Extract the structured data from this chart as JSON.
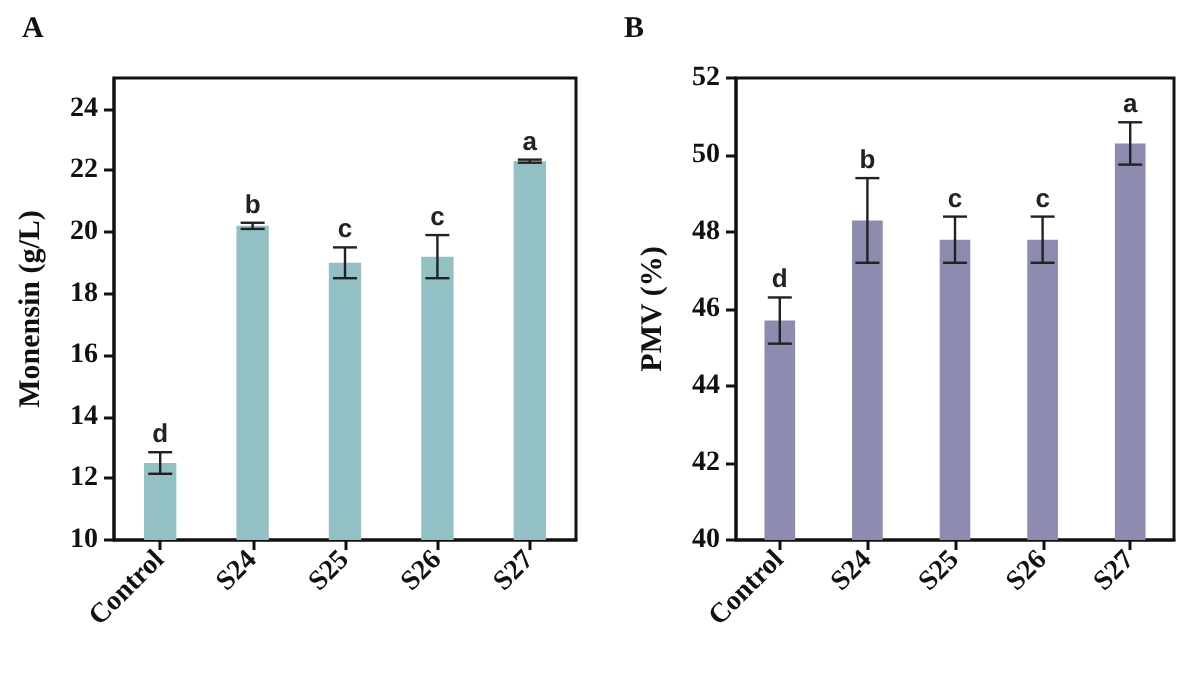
{
  "chart_data": [
    {
      "type": "bar",
      "title": "A",
      "ylabel": "Monensin (g/L)",
      "categories": [
        "Control",
        "S24",
        "S25",
        "S26",
        "S27"
      ],
      "values": [
        12.5,
        20.2,
        19.0,
        19.2,
        22.3
      ],
      "errors": [
        0.35,
        0.1,
        0.5,
        0.7,
        0.05
      ],
      "color": "#93c0c4",
      "ylim": [
        10,
        25
      ],
      "yticks": [
        10,
        12,
        14,
        16,
        18,
        20,
        22,
        24
      ],
      "grid": false,
      "annotations": [
        {
          "text": "d",
          "x": "Control",
          "y": 12.85
        },
        {
          "text": "b",
          "x": "S24",
          "y": 20.3
        },
        {
          "text": "c",
          "x": "S25",
          "y": 19.5
        },
        {
          "text": "c",
          "x": "S26",
          "y": 19.9
        },
        {
          "text": "a",
          "x": "S27",
          "y": 22.35
        }
      ]
    },
    {
      "type": "bar",
      "title": "B",
      "ylabel": "PMV (%)",
      "categories": [
        "Control",
        "S24",
        "S25",
        "S26",
        "S27"
      ],
      "values": [
        45.7,
        48.3,
        47.8,
        47.8,
        50.3
      ],
      "errors": [
        0.6,
        1.1,
        0.6,
        0.6,
        0.55
      ],
      "color": "#8e8bb0",
      "ylim": [
        40,
        52
      ],
      "yticks": [
        40,
        42,
        44,
        46,
        48,
        50,
        52
      ],
      "grid": false,
      "annotations": [
        {
          "text": "d",
          "x": "Control",
          "y": 46.3
        },
        {
          "text": "b",
          "x": "S24",
          "y": 49.4
        },
        {
          "text": "c",
          "x": "S25",
          "y": 48.4
        },
        {
          "text": "c",
          "x": "S26",
          "y": 48.4
        },
        {
          "text": "a",
          "x": "S27",
          "y": 50.85
        }
      ]
    }
  ]
}
